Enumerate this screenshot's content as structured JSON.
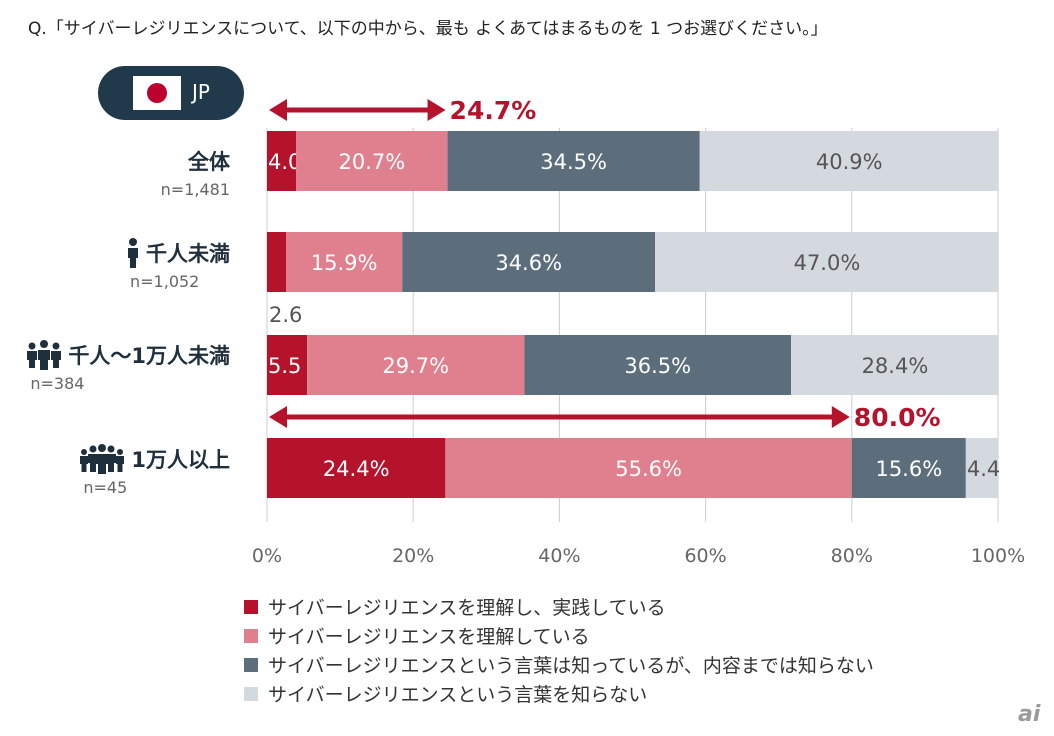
{
  "question": "Q.「サイバーレジリエンスについて、以下の中から、最も よくあてはまるものを 1 つお選びください。」",
  "badge": {
    "flag_icon": "japan-flag-icon",
    "code": "JP"
  },
  "logo": "ai",
  "chart_data": {
    "type": "bar",
    "orientation": "horizontal",
    "stacked": true,
    "title": "",
    "xlabel": "",
    "ylabel": "",
    "xlim": [
      0,
      100
    ],
    "xticks": [
      "0%",
      "20%",
      "40%",
      "60%",
      "80%",
      "100%"
    ],
    "grid": true,
    "legend_position": "bottom",
    "categories": [
      {
        "name": "全体",
        "n": "n=1,481",
        "icon": ""
      },
      {
        "name": "千人未満",
        "n": "n=1,052",
        "icon": "person-icon"
      },
      {
        "name": "千人～1万人未満",
        "n": "n=384",
        "icon": "group-icon"
      },
      {
        "name": "1万人以上",
        "n": "n=45",
        "icon": "large-group-icon"
      }
    ],
    "series": [
      {
        "name": "サイバーレジリエンスを理解し、実践している",
        "color": "#b5122c",
        "values": [
          4.0,
          2.6,
          5.5,
          24.4
        ],
        "labels": [
          "4.0",
          "2.6",
          "5.5",
          "24.4%"
        ]
      },
      {
        "name": "サイバーレジリエンスを理解している",
        "color": "#e0808f",
        "values": [
          20.7,
          15.9,
          29.7,
          55.6
        ],
        "labels": [
          "20.7%",
          "15.9%",
          "29.7%",
          "55.6%"
        ]
      },
      {
        "name": "サイバーレジリエンスという言葉は知っているが、内容までは知らない",
        "color": "#5c6e7c",
        "values": [
          34.5,
          34.6,
          36.5,
          15.6
        ],
        "labels": [
          "34.5%",
          "34.6%",
          "36.5%",
          "15.6%"
        ]
      },
      {
        "name": "サイバーレジリエンスという言葉を知らない",
        "color": "#d3d9df",
        "values": [
          40.9,
          47.0,
          28.4,
          4.4
        ],
        "labels": [
          "40.9%",
          "47.0%",
          "28.4%",
          "4.4"
        ]
      }
    ],
    "annotations": [
      {
        "category": "全体",
        "value": 24.7,
        "text": "24.7%"
      },
      {
        "category": "1万人以上",
        "value": 80.0,
        "text": "80.0%"
      }
    ],
    "label_colors": [
      "#ffffff",
      "#ffffff",
      "#ffffff",
      "#555555"
    ],
    "annotation_color": "#b5122c",
    "grid_color": "#cccccc"
  }
}
